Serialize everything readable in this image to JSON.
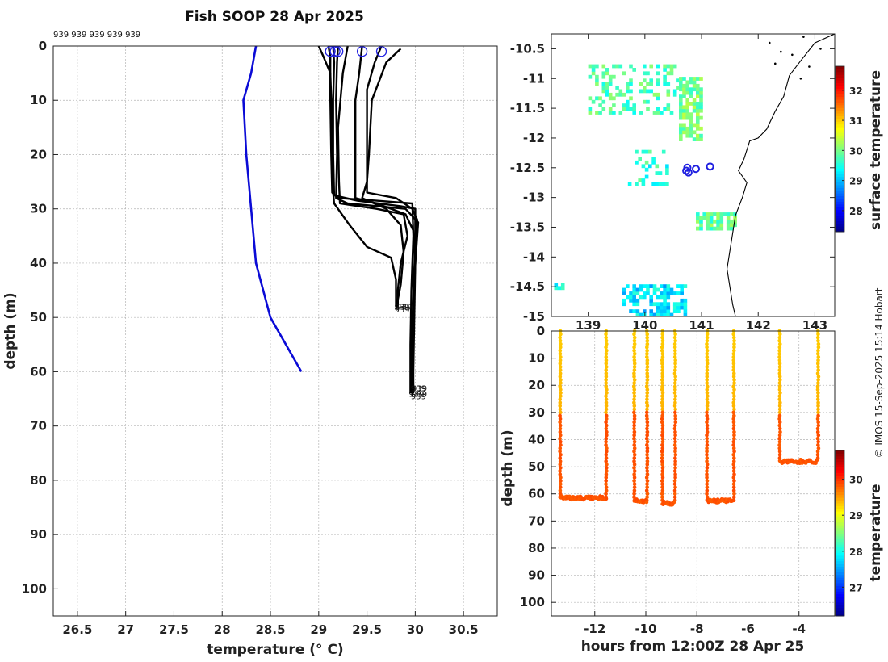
{
  "title": "Fish SOOP 28 Apr 2025",
  "credit": "© IMOS 15-Sep-2025 15:14 Hobart",
  "colors": {
    "profile": "#000000",
    "climatology": "#0b0bd6",
    "marker": "#1f1fe0",
    "grid": "#b4b4b4",
    "sst_land": "#000000"
  },
  "chart_data": [
    {
      "type": "line",
      "name": "profile-plot",
      "xlabel": "temperature (° C)",
      "ylabel": "depth (m)",
      "xlim": [
        26.25,
        30.85
      ],
      "ylim": [
        105,
        0
      ],
      "xticks": [
        26.5,
        27,
        27.5,
        28,
        28.5,
        29,
        29.5,
        30,
        30.5
      ],
      "xtick_labels": [
        "26.5",
        "27",
        "27.5",
        "28",
        "28.5",
        "29",
        "29.5",
        "30",
        "30.5"
      ],
      "yticks": [
        0,
        10,
        20,
        30,
        40,
        50,
        60,
        70,
        80,
        90,
        100
      ],
      "ytick_labels": [
        "0",
        "10",
        "20",
        "30",
        "40",
        "50",
        "60",
        "70",
        "80",
        "90",
        "100"
      ],
      "top_label": "939 939 939 939 939",
      "end_label": "939",
      "climatology": {
        "name": "climatology",
        "points": [
          [
            28.35,
            0
          ],
          [
            28.3,
            5
          ],
          [
            28.22,
            10
          ],
          [
            28.25,
            20
          ],
          [
            28.3,
            30
          ],
          [
            28.35,
            40
          ],
          [
            28.5,
            50
          ],
          [
            28.82,
            60
          ]
        ]
      },
      "series": [
        {
          "name": "profile 1",
          "points": [
            [
              29.1,
              0
            ],
            [
              29.12,
              2
            ],
            [
              29.12,
              10
            ],
            [
              29.13,
              20
            ],
            [
              29.14,
              27
            ],
            [
              29.2,
              28
            ],
            [
              29.6,
              28.5
            ],
            [
              29.97,
              29
            ],
            [
              29.98,
              35
            ],
            [
              29.96,
              45
            ],
            [
              29.95,
              55
            ],
            [
              29.95,
              62
            ],
            [
              29.95,
              64
            ]
          ]
        },
        {
          "name": "profile 2",
          "points": [
            [
              29.15,
              0
            ],
            [
              29.16,
              3
            ],
            [
              29.15,
              10
            ],
            [
              29.15,
              20
            ],
            [
              29.16,
              27.5
            ],
            [
              29.4,
              28.5
            ],
            [
              29.85,
              29.5
            ],
            [
              30.0,
              30
            ],
            [
              30.0,
              36
            ],
            [
              29.98,
              46
            ],
            [
              29.97,
              56
            ],
            [
              29.98,
              63
            ]
          ]
        },
        {
          "name": "profile 3",
          "points": [
            [
              29.2,
              0
            ],
            [
              29.19,
              3
            ],
            [
              29.18,
              10
            ],
            [
              29.19,
              20
            ],
            [
              29.18,
              28
            ],
            [
              29.3,
              29
            ],
            [
              29.9,
              30
            ],
            [
              30.03,
              32.5
            ],
            [
              30.0,
              40
            ],
            [
              29.97,
              50
            ],
            [
              29.96,
              58
            ],
            [
              29.97,
              64.5
            ]
          ]
        },
        {
          "name": "profile 4",
          "points": [
            [
              29.3,
              0
            ],
            [
              29.25,
              5
            ],
            [
              29.2,
              15
            ],
            [
              29.21,
              25
            ],
            [
              29.22,
              29
            ],
            [
              29.6,
              30
            ],
            [
              29.88,
              31
            ],
            [
              29.92,
              35
            ],
            [
              29.85,
              40
            ],
            [
              29.82,
              45
            ],
            [
              29.82,
              48
            ]
          ]
        },
        {
          "name": "profile 5",
          "points": [
            [
              29.45,
              0
            ],
            [
              29.42,
              5
            ],
            [
              29.38,
              10
            ],
            [
              29.38,
              20
            ],
            [
              29.38,
              28
            ],
            [
              29.6,
              29
            ],
            [
              29.9,
              31
            ],
            [
              29.98,
              34
            ],
            [
              30.0,
              40
            ],
            [
              29.99,
              50
            ],
            [
              29.98,
              60
            ],
            [
              29.98,
              64
            ]
          ]
        },
        {
          "name": "profile 6",
          "points": [
            [
              29.65,
              0
            ],
            [
              29.58,
              3
            ],
            [
              29.5,
              8
            ],
            [
              29.5,
              20
            ],
            [
              29.5,
              27
            ],
            [
              29.8,
              28
            ],
            [
              29.97,
              30
            ],
            [
              30.02,
              32
            ],
            [
              30.0,
              40
            ],
            [
              29.98,
              50
            ],
            [
              29.97,
              60
            ],
            [
              29.97,
              63
            ]
          ]
        },
        {
          "name": "profile 7",
          "points": [
            [
              29.85,
              0.5
            ],
            [
              29.7,
              3
            ],
            [
              29.55,
              10
            ],
            [
              29.52,
              20
            ],
            [
              29.5,
              25
            ],
            [
              29.45,
              28
            ],
            [
              29.7,
              30
            ],
            [
              29.85,
              33
            ],
            [
              29.88,
              38
            ],
            [
              29.85,
              44
            ],
            [
              29.8,
              48.5
            ]
          ]
        },
        {
          "name": "profile 8",
          "points": [
            [
              29.0,
              0
            ],
            [
              29.05,
              2
            ],
            [
              29.12,
              5
            ],
            [
              29.14,
              15
            ],
            [
              29.14,
              25
            ],
            [
              29.16,
              29
            ],
            [
              29.32,
              33
            ],
            [
              29.5,
              37
            ],
            [
              29.75,
              39
            ],
            [
              29.8,
              43
            ],
            [
              29.8,
              48
            ]
          ]
        }
      ],
      "markers": [
        [
          29.12,
          1
        ],
        [
          29.17,
          1
        ],
        [
          29.2,
          1
        ],
        [
          29.45,
          1
        ],
        [
          29.65,
          1
        ]
      ]
    },
    {
      "type": "heatmap",
      "name": "sst-map",
      "xlim": [
        138.35,
        143.35
      ],
      "ylim": [
        -15.0,
        -10.25
      ],
      "xticks": [
        139,
        140,
        141,
        142,
        143
      ],
      "xtick_labels": [
        "139",
        "140",
        "141",
        "142",
        "143"
      ],
      "yticks": [
        -10.5,
        -11,
        -11.5,
        -12,
        -12.5,
        -13,
        -13.5,
        -14,
        -14.5,
        -15
      ],
      "ytick_labels": [
        "-10.5",
        "-11",
        "-11.5",
        "-12",
        "-12.5",
        "-13",
        "-13.5",
        "-14",
        "-14.5",
        "-15"
      ],
      "colorbar_label": "surface temperature",
      "colorbar_range": [
        27.3,
        32.8
      ],
      "colorbar_ticks": [
        28,
        29,
        30,
        31,
        32
      ],
      "colorbar_tick_labels": [
        "28",
        "29",
        "30",
        "31",
        "32"
      ],
      "stations": [
        [
          140.75,
          -12.5
        ],
        [
          140.9,
          -12.52
        ],
        [
          141.15,
          -12.48
        ],
        [
          140.77,
          -12.58
        ],
        [
          140.73,
          -12.55
        ]
      ],
      "sst_patches": [
        {
          "lon": [
            139.0,
            140.6
          ],
          "lat": [
            -11.6,
            -10.8
          ],
          "temp": 29.8,
          "density": 0.35
        },
        {
          "lon": [
            140.6,
            141.0
          ],
          "lat": [
            -12.05,
            -11.0
          ],
          "temp": 30.0,
          "density": 0.7
        },
        {
          "lon": [
            139.7,
            140.4
          ],
          "lat": [
            -12.8,
            -12.2
          ],
          "temp": 29.6,
          "density": 0.2
        },
        {
          "lon": [
            140.9,
            141.6
          ],
          "lat": [
            -13.55,
            -13.3
          ],
          "temp": 29.9,
          "density": 0.8
        },
        {
          "lon": [
            139.6,
            140.7
          ],
          "lat": [
            -15.0,
            -14.5
          ],
          "temp": 29.2,
          "density": 0.6
        },
        {
          "lon": [
            138.4,
            138.6
          ],
          "lat": [
            -14.55,
            -14.45
          ],
          "temp": 29.4,
          "density": 0.6
        }
      ]
    },
    {
      "type": "scatter",
      "name": "time-depth-section",
      "xlabel": "hours from 12:00Z 28 Apr 25",
      "ylabel": "depth (m)",
      "xlim": [
        -13.7,
        -2.6
      ],
      "ylim": [
        105,
        0
      ],
      "xticks": [
        -12,
        -10,
        -8,
        -6,
        -4
      ],
      "xtick_labels": [
        "-12",
        "-10",
        "-8",
        "-6",
        "-4"
      ],
      "yticks": [
        0,
        10,
        20,
        30,
        40,
        50,
        60,
        70,
        80,
        90,
        100
      ],
      "ytick_labels": [
        "0",
        "10",
        "20",
        "30",
        "40",
        "50",
        "60",
        "70",
        "80",
        "90",
        "100"
      ],
      "colorbar_label": "temperature",
      "colorbar_range": [
        26.2,
        30.8
      ],
      "colorbar_ticks": [
        27,
        28,
        29,
        30
      ],
      "colorbar_tick_labels": [
        "27",
        "28",
        "29",
        "30"
      ],
      "casts": [
        {
          "t_down": -13.35,
          "t_up": -11.55,
          "bottom": 61.5,
          "mld": 30
        },
        {
          "t_down": -10.45,
          "t_up": -9.95,
          "bottom": 62.5,
          "mld": 29
        },
        {
          "t_down": -9.35,
          "t_up": -8.85,
          "bottom": 63.5,
          "mld": 29
        },
        {
          "t_down": -7.6,
          "t_up": -6.55,
          "bottom": 62.5,
          "mld": 29
        },
        {
          "t_down": -4.75,
          "t_up": -3.25,
          "bottom": 48,
          "mld": 30
        }
      ],
      "temps": {
        "surface": 29.3,
        "deep": 29.85
      }
    }
  ]
}
